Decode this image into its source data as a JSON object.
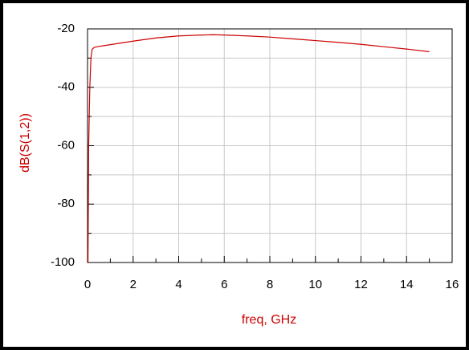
{
  "chart_data": {
    "type": "line",
    "x_label": "freq, GHz",
    "y_label": "dB(S(1,2))",
    "x": [
      0.02,
      0.05,
      0.1,
      0.15,
      0.2,
      0.3,
      0.5,
      1,
      2,
      3,
      4,
      5,
      5.5,
      6,
      7,
      8,
      9,
      10,
      11,
      12,
      13,
      14,
      15
    ],
    "series": [
      {
        "name": "dB(S(1,2))",
        "color": "#cc0000",
        "values": [
          -100,
          -60,
          -40,
          -30,
          -27,
          -26.3,
          -26,
          -25.4,
          -24.2,
          -23.1,
          -22.4,
          -22.1,
          -22,
          -22.1,
          -22.4,
          -22.8,
          -23.4,
          -24,
          -24.6,
          -25.3,
          -26.1,
          -26.9,
          -27.8
        ]
      }
    ],
    "xlim": [
      0,
      16
    ],
    "xticks": [
      0,
      2,
      4,
      6,
      8,
      10,
      12,
      14,
      16
    ],
    "xminor_ticks": [
      1,
      3,
      5,
      7,
      9,
      11,
      13,
      15
    ],
    "ylim": [
      -100,
      -20
    ],
    "yticks": [
      -100,
      -80,
      -60,
      -40,
      -20
    ],
    "yminor_ticks": [
      -90,
      -70,
      -50,
      -30
    ],
    "grid": true
  }
}
